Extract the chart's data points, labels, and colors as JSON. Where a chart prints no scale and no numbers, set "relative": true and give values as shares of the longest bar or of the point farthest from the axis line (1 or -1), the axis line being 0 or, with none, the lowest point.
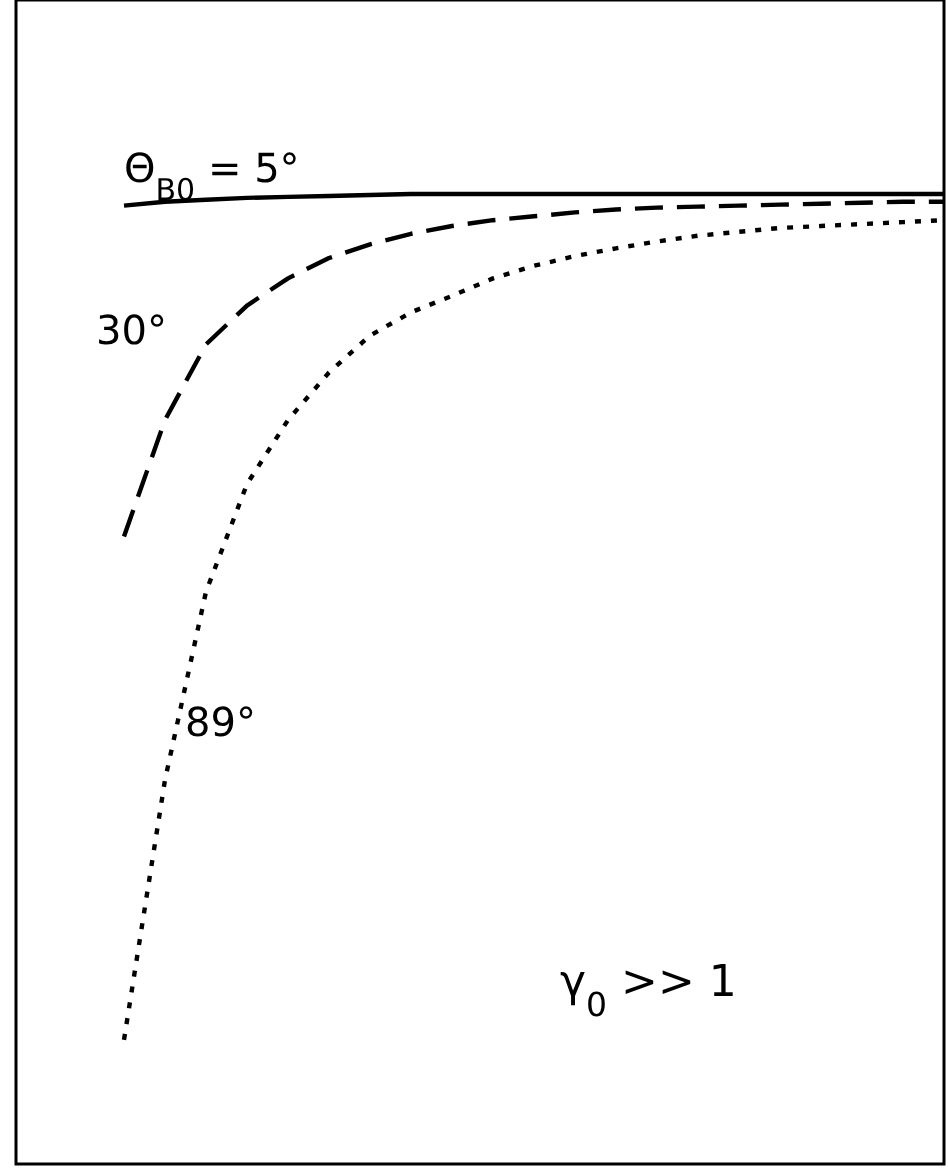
{
  "chart_data": {
    "type": "line",
    "relative": true,
    "categories": [
      null,
      null,
      null,
      null,
      null,
      null,
      null,
      null,
      null,
      null,
      null,
      null,
      null,
      null,
      null,
      null,
      null,
      null,
      null,
      null,
      null
    ],
    "series": [
      {
        "name": "Θ$_{B0}$ = 5°",
        "color": "#000000",
        "line_style": "solid",
        "values": [
          0.988,
          0.992,
          0.994,
          0.996,
          0.997,
          0.998,
          0.999,
          1,
          1,
          1,
          1,
          1,
          1,
          1,
          1,
          1,
          1,
          1,
          1,
          1,
          1
        ]
      },
      {
        "name": "30°",
        "color": "#000000",
        "line_style": "dashed",
        "values": [
          0.647,
          0.767,
          0.845,
          0.885,
          0.913,
          0.934,
          0.948,
          0.959,
          0.967,
          0.973,
          0.977,
          0.981,
          0.984,
          0.986,
          0.987,
          0.988,
          0.989,
          0.99,
          0.991,
          0.992,
          0.992
        ]
      },
      {
        "name": "89°",
        "color": "#000000",
        "line_style": "dotted",
        "values": [
          0.128,
          0.396,
          0.59,
          0.701,
          0.767,
          0.816,
          0.854,
          0.878,
          0.895,
          0.913,
          0.926,
          0.936,
          0.944,
          0.951,
          0.957,
          0.961,
          0.965,
          0.967,
          0.969,
          0.971,
          0.973
        ]
      }
    ],
    "annotations": [
      "γ$_{0}$ >> 1"
    ]
  }
}
